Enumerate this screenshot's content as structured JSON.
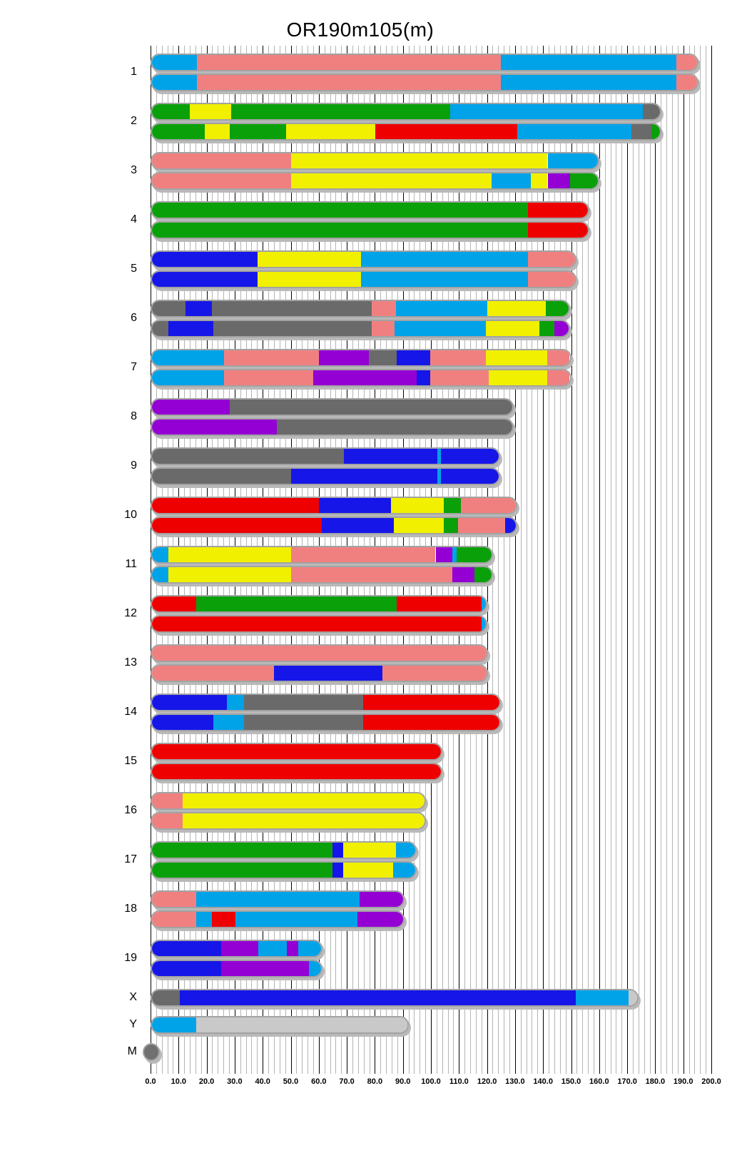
{
  "colors": {
    "lb": "#00A2E8",
    "sa": "#F08080",
    "gr": "#0AA00A",
    "ye": "#F0F000",
    "re": "#EE0000",
    "gy": "#6A6A6A",
    "bl": "#1616E8",
    "pu": "#9400D3",
    "si": "#C9C9C9",
    "mg": "#707070",
    "bar_border": "#a3a3a3",
    "bar_shadow": "#b9b9b9",
    "grid_minor": "#b4b4b4",
    "grid_major": "#000000"
  },
  "chart_data": {
    "type": "bar",
    "subtype": "chromosome-haplotype-ideogram",
    "orientation": "horizontal",
    "title": "OR190m105(m)",
    "xlabel": "",
    "ylabel": "",
    "axis": {
      "min": 0,
      "max": 200,
      "major_step": 10,
      "minor_step": 2,
      "tick_labels": [
        "0.0",
        "10.0",
        "20.0",
        "30.0",
        "40.0",
        "50.0",
        "60.0",
        "70.0",
        "80.0",
        "90.0",
        "100.0",
        "110.0",
        "120.0",
        "130.0",
        "140.0",
        "150.0",
        "160.0",
        "170.0",
        "180.0",
        "190.0",
        "200.0"
      ]
    },
    "grid": true,
    "chromosomes": [
      {
        "name": "1",
        "length": 195.5,
        "bars": [
          [
            [
              "lb",
              0,
              16
            ],
            [
              "sa",
              16,
              125
            ],
            [
              "lb",
              125,
              188
            ],
            [
              "sa",
              188,
              195.5
            ]
          ],
          [
            [
              "lb",
              0,
              16
            ],
            [
              "sa",
              16,
              125
            ],
            [
              "lb",
              125,
              188
            ],
            [
              "sa",
              188,
              195.5
            ]
          ]
        ]
      },
      {
        "name": "2",
        "length": 182.1,
        "bars": [
          [
            [
              "gr",
              0,
              13.5
            ],
            [
              "ye",
              13.5,
              28.5
            ],
            [
              "gr",
              28.5,
              107
            ],
            [
              "lb",
              107,
              176
            ],
            [
              "gy",
              176,
              182.1
            ]
          ],
          [
            [
              "gr",
              0,
              19
            ],
            [
              "ye",
              19,
              28
            ],
            [
              "gr",
              28,
              48
            ],
            [
              "ye",
              48,
              80
            ],
            [
              "re",
              80,
              131
            ],
            [
              "lb",
              131,
              172
            ],
            [
              "gy",
              172,
              179
            ],
            [
              "gr",
              179,
              182.1
            ]
          ]
        ]
      },
      {
        "name": "3",
        "length": 160,
        "bars": [
          [
            [
              "sa",
              0,
              50
            ],
            [
              "ye",
              50,
              142
            ],
            [
              "lb",
              142,
              160
            ]
          ],
          [
            [
              "sa",
              0,
              50
            ],
            [
              "ye",
              50,
              122
            ],
            [
              "lb",
              122,
              136
            ],
            [
              "ye",
              136,
              142
            ],
            [
              "pu",
              142,
              150
            ],
            [
              "gr",
              150,
              160
            ]
          ]
        ]
      },
      {
        "name": "4",
        "length": 156.5,
        "bars": [
          [
            [
              "gr",
              0,
              135
            ],
            [
              "re",
              135,
              156.5
            ]
          ],
          [
            [
              "gr",
              0,
              135
            ],
            [
              "re",
              135,
              156.5
            ]
          ]
        ]
      },
      {
        "name": "5",
        "length": 151.8,
        "bars": [
          [
            [
              "bl",
              0,
              38
            ],
            [
              "ye",
              38,
              75
            ],
            [
              "lb",
              75,
              135
            ],
            [
              "sa",
              135,
              151.8
            ]
          ],
          [
            [
              "bl",
              0,
              38
            ],
            [
              "ye",
              38,
              75
            ],
            [
              "lb",
              75,
              135
            ],
            [
              "sa",
              135,
              151.8
            ]
          ]
        ]
      },
      {
        "name": "6",
        "length": 149.6,
        "bars": [
          [
            [
              "gy",
              0,
              12
            ],
            [
              "bl",
              12,
              21.5
            ],
            [
              "gy",
              21.5,
              79
            ],
            [
              "sa",
              79,
              87.5
            ],
            [
              "lb",
              87.5,
              120.5
            ],
            [
              "ye",
              120.5,
              141.5
            ],
            [
              "gr",
              141.5,
              149.6
            ]
          ],
          [
            [
              "gy",
              0,
              6
            ],
            [
              "bl",
              6,
              22
            ],
            [
              "gy",
              22,
              79
            ],
            [
              "sa",
              79,
              87
            ],
            [
              "lb",
              87,
              120
            ],
            [
              "ye",
              120,
              139
            ],
            [
              "gr",
              139,
              144.5
            ],
            [
              "pu",
              144.5,
              149.6
            ]
          ]
        ]
      },
      {
        "name": "7",
        "length": 150,
        "bars": [
          [
            [
              "lb",
              0,
              26
            ],
            [
              "sa",
              26,
              60
            ],
            [
              "pu",
              60,
              78
            ],
            [
              "gy",
              78,
              88
            ],
            [
              "bl",
              88,
              100
            ],
            [
              "sa",
              100,
              120
            ],
            [
              "ye",
              120,
              142
            ],
            [
              "sa",
              142,
              150
            ]
          ],
          [
            [
              "lb",
              0,
              26
            ],
            [
              "sa",
              26,
              58
            ],
            [
              "pu",
              58,
              95
            ],
            [
              "bl",
              95,
              100
            ],
            [
              "sa",
              100,
              121
            ],
            [
              "ye",
              121,
              142
            ],
            [
              "sa",
              142,
              150
            ]
          ]
        ]
      },
      {
        "name": "8",
        "length": 129.4,
        "bars": [
          [
            [
              "pu",
              0,
              28
            ],
            [
              "gy",
              28,
              129.4
            ]
          ],
          [
            [
              "pu",
              0,
              45
            ],
            [
              "gy",
              45,
              129.4
            ]
          ]
        ]
      },
      {
        "name": "9",
        "length": 124.6,
        "bars": [
          [
            [
              "gy",
              0,
              69
            ],
            [
              "bl",
              69,
              102.5
            ],
            [
              "lb",
              102.5,
              104
            ],
            [
              "bl",
              104,
              124.6
            ]
          ],
          [
            [
              "gy",
              0,
              50
            ],
            [
              "bl",
              50,
              102.5
            ],
            [
              "lb",
              102.5,
              104
            ],
            [
              "bl",
              104,
              124.6
            ]
          ]
        ]
      },
      {
        "name": "10",
        "length": 130.7,
        "bars": [
          [
            [
              "re",
              0,
              60
            ],
            [
              "bl",
              60,
              86
            ],
            [
              "ye",
              86,
              105
            ],
            [
              "gr",
              105,
              111
            ],
            [
              "sa",
              111,
              130.7
            ]
          ],
          [
            [
              "re",
              0,
              61
            ],
            [
              "bl",
              61,
              87
            ],
            [
              "ye",
              87,
              105
            ],
            [
              "gr",
              105,
              110
            ],
            [
              "sa",
              110,
              127
            ],
            [
              "bl",
              127,
              130.7
            ]
          ]
        ]
      },
      {
        "name": "11",
        "length": 122.1,
        "bars": [
          [
            [
              "lb",
              0,
              6
            ],
            [
              "ye",
              6,
              50
            ],
            [
              "sa",
              50,
              102
            ],
            [
              "pu",
              102,
              108
            ],
            [
              "lb",
              108,
              109.5
            ],
            [
              "gr",
              109.5,
              122.1
            ]
          ],
          [
            [
              "lb",
              0,
              6
            ],
            [
              "ye",
              6,
              50
            ],
            [
              "sa",
              50,
              108
            ],
            [
              "pu",
              108,
              116
            ],
            [
              "gr",
              116,
              122.1
            ]
          ]
        ]
      },
      {
        "name": "12",
        "length": 120.1,
        "bars": [
          [
            [
              "re",
              0,
              16
            ],
            [
              "gr",
              16,
              88
            ],
            [
              "re",
              88,
              118.5
            ],
            [
              "lb",
              118.5,
              120.1
            ]
          ],
          [
            [
              "re",
              0,
              118.5
            ],
            [
              "lb",
              118.5,
              120.1
            ]
          ]
        ]
      },
      {
        "name": "13",
        "length": 120.4,
        "bars": [
          [
            [
              "sa",
              0,
              120.4
            ]
          ],
          [
            [
              "sa",
              0,
              44
            ],
            [
              "bl",
              44,
              83
            ],
            [
              "sa",
              83,
              120.4
            ]
          ]
        ]
      },
      {
        "name": "14",
        "length": 124.9,
        "bars": [
          [
            [
              "bl",
              0,
              27
            ],
            [
              "lb",
              27,
              33
            ],
            [
              "gy",
              33,
              76
            ],
            [
              "re",
              76,
              124.9
            ]
          ],
          [
            [
              "bl",
              0,
              22
            ],
            [
              "lb",
              22,
              33
            ],
            [
              "gy",
              33,
              76
            ],
            [
              "re",
              76,
              124.9
            ]
          ]
        ]
      },
      {
        "name": "15",
        "length": 104,
        "bars": [
          [
            [
              "re",
              0,
              104
            ]
          ],
          [
            [
              "re",
              0,
              104
            ]
          ]
        ]
      },
      {
        "name": "16",
        "length": 98.2,
        "bars": [
          [
            [
              "sa",
              0,
              11
            ],
            [
              "ye",
              11,
              98.2
            ]
          ],
          [
            [
              "sa",
              0,
              11
            ],
            [
              "ye",
              11,
              98.2
            ]
          ]
        ]
      },
      {
        "name": "17",
        "length": 95,
        "bars": [
          [
            [
              "gr",
              0,
              65
            ],
            [
              "bl",
              65,
              69
            ],
            [
              "ye",
              69,
              88
            ],
            [
              "lb",
              88,
              95
            ]
          ],
          [
            [
              "gr",
              0,
              65
            ],
            [
              "bl",
              65,
              69
            ],
            [
              "ye",
              69,
              87
            ],
            [
              "lb",
              87,
              95
            ]
          ]
        ]
      },
      {
        "name": "18",
        "length": 90.7,
        "bars": [
          [
            [
              "sa",
              0,
              16
            ],
            [
              "lb",
              16,
              75
            ],
            [
              "pu",
              75,
              90.7
            ]
          ],
          [
            [
              "sa",
              0,
              16
            ],
            [
              "lb",
              16,
              21.5
            ],
            [
              "re",
              21.5,
              30
            ],
            [
              "lb",
              30,
              74
            ],
            [
              "pu",
              74,
              90.7
            ]
          ]
        ]
      },
      {
        "name": "19",
        "length": 61.3,
        "bars": [
          [
            [
              "bl",
              0,
              25
            ],
            [
              "pu",
              25,
              38.5
            ],
            [
              "lb",
              38.5,
              49
            ],
            [
              "pu",
              49,
              53
            ],
            [
              "lb",
              53,
              61.3
            ]
          ],
          [
            [
              "bl",
              0,
              25
            ],
            [
              "pu",
              25,
              57
            ],
            [
              "lb",
              57,
              61.3
            ]
          ]
        ]
      },
      {
        "name": "X",
        "length": 174,
        "bars": [
          [
            [
              "gy",
              0,
              10
            ],
            [
              "bl",
              10,
              152
            ],
            [
              "lb",
              152,
              171
            ],
            [
              "si",
              171,
              174
            ]
          ]
        ]
      },
      {
        "name": "Y",
        "length": 92,
        "bars": [
          [
            [
              "lb",
              0,
              16
            ],
            [
              "si",
              16,
              92
            ]
          ]
        ]
      },
      {
        "name": "M",
        "length": 2,
        "dot": true,
        "bars": [
          [
            [
              "mg",
              0,
              2
            ]
          ]
        ]
      }
    ]
  }
}
